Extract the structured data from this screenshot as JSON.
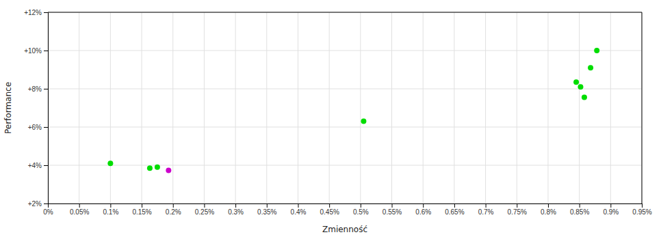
{
  "chart_data": {
    "type": "scatter",
    "xlabel": "Zmienność",
    "ylabel": "Performance",
    "x": [
      0.001,
      0.00163,
      0.00175,
      0.00193,
      0.00505,
      0.00845,
      0.00852,
      0.00858,
      0.00868,
      0.00878
    ],
    "values": [
      0.041,
      0.0385,
      0.039,
      0.0373,
      0.063,
      0.0835,
      0.081,
      0.0755,
      0.091,
      0.1
    ],
    "colors": [
      "#00dd00",
      "#00dd00",
      "#00dd00",
      "#cc00cc",
      "#00dd00",
      "#00dd00",
      "#00dd00",
      "#00dd00",
      "#00dd00",
      "#00dd00"
    ],
    "xlim": [
      0,
      0.0095
    ],
    "ylim": [
      0.02,
      0.12
    ],
    "xticks": [
      {
        "value": 0,
        "label": "0%"
      },
      {
        "value": 0.0005,
        "label": "0.05%"
      },
      {
        "value": 0.001,
        "label": "0.1%"
      },
      {
        "value": 0.0015,
        "label": "0.15%"
      },
      {
        "value": 0.002,
        "label": "0.2%"
      },
      {
        "value": 0.0025,
        "label": "0.25%"
      },
      {
        "value": 0.003,
        "label": "0.3%"
      },
      {
        "value": 0.0035,
        "label": "0.35%"
      },
      {
        "value": 0.004,
        "label": "0.4%"
      },
      {
        "value": 0.0045,
        "label": "0.45%"
      },
      {
        "value": 0.005,
        "label": "0.5%"
      },
      {
        "value": 0.0055,
        "label": "0.55%"
      },
      {
        "value": 0.006,
        "label": "0.6%"
      },
      {
        "value": 0.0065,
        "label": "0.65%"
      },
      {
        "value": 0.007,
        "label": "0.7%"
      },
      {
        "value": 0.0075,
        "label": "0.75%"
      },
      {
        "value": 0.008,
        "label": "0.8%"
      },
      {
        "value": 0.0085,
        "label": "0.85%"
      },
      {
        "value": 0.009,
        "label": "0.9%"
      },
      {
        "value": 0.0095,
        "label": "0.95%"
      }
    ],
    "yticks": [
      {
        "value": 0.02,
        "label": "+2%"
      },
      {
        "value": 0.04,
        "label": "+4%"
      },
      {
        "value": 0.06,
        "label": "+6%"
      },
      {
        "value": 0.08,
        "label": "+8%"
      },
      {
        "value": 0.1,
        "label": "+10%"
      },
      {
        "value": 0.12,
        "label": "+12%"
      }
    ],
    "grid": true
  }
}
